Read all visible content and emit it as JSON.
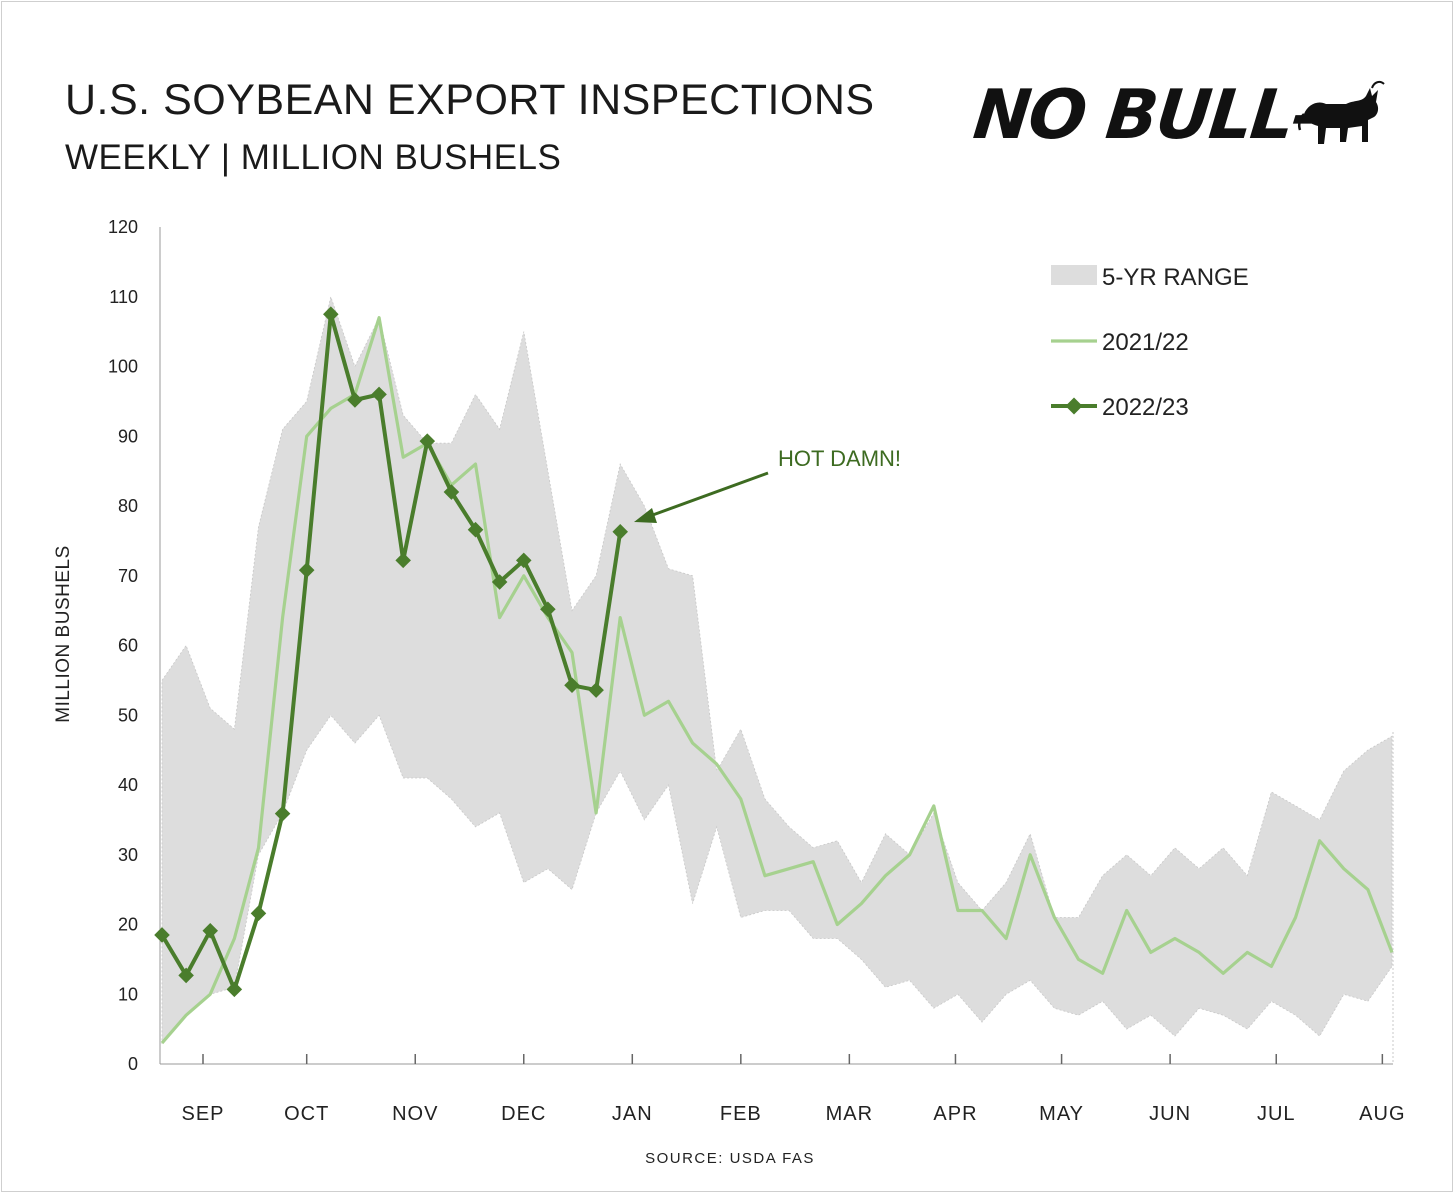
{
  "header": {
    "title": "U.S. SOYBEAN EXPORT INSPECTIONS",
    "subtitle": "WEEKLY  |  MILLION BUSHELS",
    "logo_text": "NO BULL—"
  },
  "footer": {
    "source": "SOURCE: USDA FAS"
  },
  "colors": {
    "range_fill": "#dddddd",
    "series_2021": "#a6d18f",
    "series_2022": "#4a7d2c",
    "annotation": "#3d6b21",
    "axis": "#999999"
  },
  "chart_data": {
    "type": "line",
    "title": "U.S. SOYBEAN EXPORT INSPECTIONS",
    "subtitle": "WEEKLY | MILLION BUSHELS",
    "ylabel": "MILLION BUSHELS",
    "ylim": [
      0,
      120
    ],
    "yticks": [
      0,
      10,
      20,
      30,
      40,
      50,
      60,
      70,
      80,
      90,
      100,
      110,
      120
    ],
    "xlim": [
      0,
      51
    ],
    "month_labels": [
      "SEP",
      "OCT",
      "NOV",
      "DEC",
      "JAN",
      "FEB",
      "MAR",
      "APR",
      "MAY",
      "JUN",
      "JUL",
      "AUG"
    ],
    "month_tick_weeks": [
      1.7,
      6,
      10.5,
      15,
      19.5,
      24,
      28.5,
      32.9,
      37.3,
      41.8,
      46.2,
      50.6
    ],
    "legend_position": "top-right",
    "legend": [
      "5-YR RANGE",
      "2021/22",
      "2022/23"
    ],
    "series": [
      {
        "name": "5-YR RANGE",
        "type": "area-range",
        "x": [
          0,
          1,
          2,
          3,
          4,
          5,
          6,
          7,
          8,
          9,
          10,
          11,
          12,
          13,
          14,
          15,
          16,
          17,
          18,
          19,
          20,
          21,
          22,
          23,
          24,
          25,
          26,
          27,
          28,
          29,
          30,
          31,
          32,
          33,
          34,
          35,
          36,
          37,
          38,
          39,
          40,
          41,
          42,
          43,
          44,
          45,
          46,
          47,
          48,
          49,
          50,
          51
        ],
        "high": [
          55,
          60,
          51,
          48,
          77,
          91,
          95,
          110,
          100,
          107,
          93,
          89,
          89,
          96,
          91,
          105,
          85,
          65,
          70,
          86,
          80,
          71,
          70,
          42,
          48,
          38,
          34,
          31,
          32,
          26,
          33,
          30,
          36,
          26,
          22,
          26,
          33,
          21,
          21,
          27,
          30,
          27,
          31,
          28,
          31,
          27,
          39,
          37,
          35,
          42,
          45,
          47
        ],
        "low": [
          3,
          7,
          10,
          11,
          30,
          36,
          45,
          50,
          46,
          50,
          41,
          41,
          38,
          34,
          36,
          26,
          28,
          25,
          36,
          42,
          35,
          40,
          23,
          34,
          21,
          22,
          22,
          18,
          18,
          15,
          11,
          12,
          8,
          10,
          6,
          10,
          12,
          8,
          7,
          9,
          5,
          7,
          4,
          8,
          7,
          5,
          9,
          7,
          4,
          10,
          9,
          14
        ]
      },
      {
        "name": "2021/22",
        "x": [
          0,
          1,
          2,
          3,
          4,
          5,
          6,
          7,
          8,
          9,
          10,
          11,
          12,
          13,
          14,
          15,
          16,
          17,
          18,
          19,
          20,
          21,
          22,
          23,
          24,
          25,
          26,
          27,
          28,
          29,
          30,
          31,
          32,
          33,
          34,
          35,
          36,
          37,
          38,
          39,
          40,
          41,
          42,
          43,
          44,
          45,
          46,
          47,
          48,
          49,
          50,
          51
        ],
        "values": [
          3,
          7,
          10,
          18,
          31,
          64,
          90,
          94,
          96,
          107,
          87,
          89,
          83,
          86,
          64,
          70,
          64,
          59,
          36,
          64,
          50,
          52,
          46,
          43,
          38,
          27,
          28,
          29,
          20,
          23,
          27,
          30,
          37,
          22,
          22,
          18,
          30,
          21,
          15,
          13,
          22,
          16,
          18,
          16,
          13,
          16,
          14,
          21,
          32,
          28,
          25,
          16
        ]
      },
      {
        "name": "2022/23",
        "x": [
          0,
          1,
          2,
          3,
          4,
          5,
          6,
          7,
          8,
          9,
          10,
          11,
          12,
          13,
          14,
          15,
          16,
          17,
          18,
          19
        ],
        "values": [
          18.5,
          12.7,
          19.1,
          10.7,
          21.6,
          35.9,
          70.8,
          107.5,
          95.2,
          96.0,
          72.2,
          89.3,
          82.0,
          76.6,
          69.1,
          72.2,
          65.2,
          54.3,
          53.6,
          76.3
        ]
      }
    ],
    "annotations": [
      {
        "text": "HOT DAMN!",
        "x": 19,
        "y": 76.3
      }
    ]
  }
}
